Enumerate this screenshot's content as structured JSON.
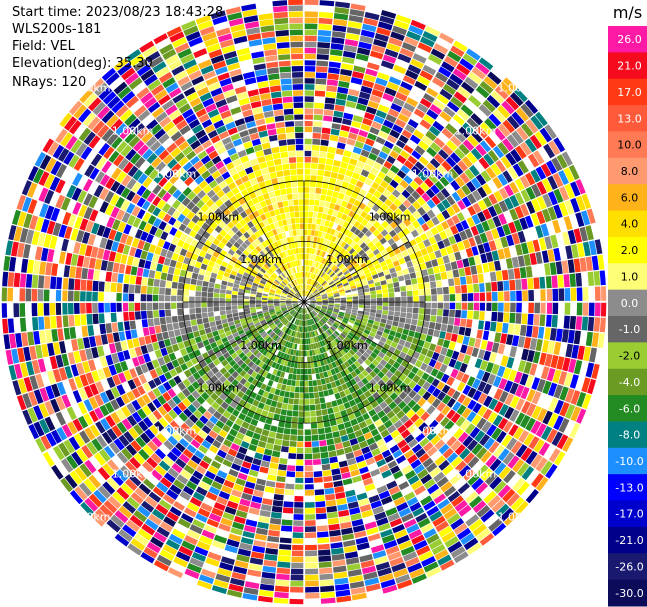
{
  "header": {
    "start_time": "Start time: 2023/08/23 18:43:28",
    "instrument": "WLS200s-181",
    "field": "Field: VEL",
    "elevation": "Elevation(deg): 35.30",
    "nrays": "NRays: 120"
  },
  "colorbar": {
    "unit": "m/s",
    "levels": [
      {
        "label": "26.0",
        "color": "#ff1aa6"
      },
      {
        "label": "21.0",
        "color": "#f50a1e"
      },
      {
        "label": "17.0",
        "color": "#ff3a14"
      },
      {
        "label": "13.0",
        "color": "#ff5a3a"
      },
      {
        "label": "10.0",
        "color": "#ff7a55"
      },
      {
        "label": "8.0",
        "color": "#ff9a70"
      },
      {
        "label": "6.0",
        "color": "#ffb21a"
      },
      {
        "label": "4.0",
        "color": "#ffdf00"
      },
      {
        "label": "2.0",
        "color": "#ffff00"
      },
      {
        "label": "1.0",
        "color": "#ffff77"
      },
      {
        "label": "0.0",
        "color": "#8c8c8c"
      },
      {
        "label": "-1.0",
        "color": "#666666"
      },
      {
        "label": "-2.0",
        "color": "#9acd32"
      },
      {
        "label": "-4.0",
        "color": "#6b9b23"
      },
      {
        "label": "-6.0",
        "color": "#228b22"
      },
      {
        "label": "-8.0",
        "color": "#008080"
      },
      {
        "label": "-10.0",
        "color": "#1e8fff"
      },
      {
        "label": "-13.0",
        "color": "#0000ff"
      },
      {
        "label": "-17.0",
        "color": "#0000cd"
      },
      {
        "label": "-21.0",
        "color": "#00008b"
      },
      {
        "label": "-26.0",
        "color": "#191970"
      },
      {
        "label": "-30.0",
        "color": "#0b0b5a"
      }
    ]
  },
  "chart_data": {
    "type": "heatmap",
    "title": "",
    "projection": "polar (PPI)",
    "field": "VEL",
    "units": "m/s",
    "nrays": 120,
    "range_rings_km": [
      1.0,
      2.0,
      3.0,
      4.0,
      5.0
    ],
    "ring_label": "1.00km",
    "spoke_angles_deg": [
      0,
      30,
      60,
      90,
      120,
      150,
      180,
      210,
      240,
      270,
      300,
      330
    ],
    "clean_region_max_km": 2.6,
    "regions": [
      {
        "sector": "north",
        "dominant_values_m_s": [
          1.0,
          2.0,
          4.0
        ],
        "description_class": "positive"
      },
      {
        "sector": "south",
        "dominant_values_m_s": [
          -2.0,
          -4.0,
          -6.0
        ],
        "description_class": "negative"
      },
      {
        "sector": "east-west axis",
        "dominant_values_m_s": [
          0.0,
          -1.0
        ],
        "description_class": "near-zero"
      },
      {
        "sector": "outer ring",
        "dominant_values_m_s": "noise",
        "description_class": "noise"
      }
    ],
    "grid": true
  }
}
